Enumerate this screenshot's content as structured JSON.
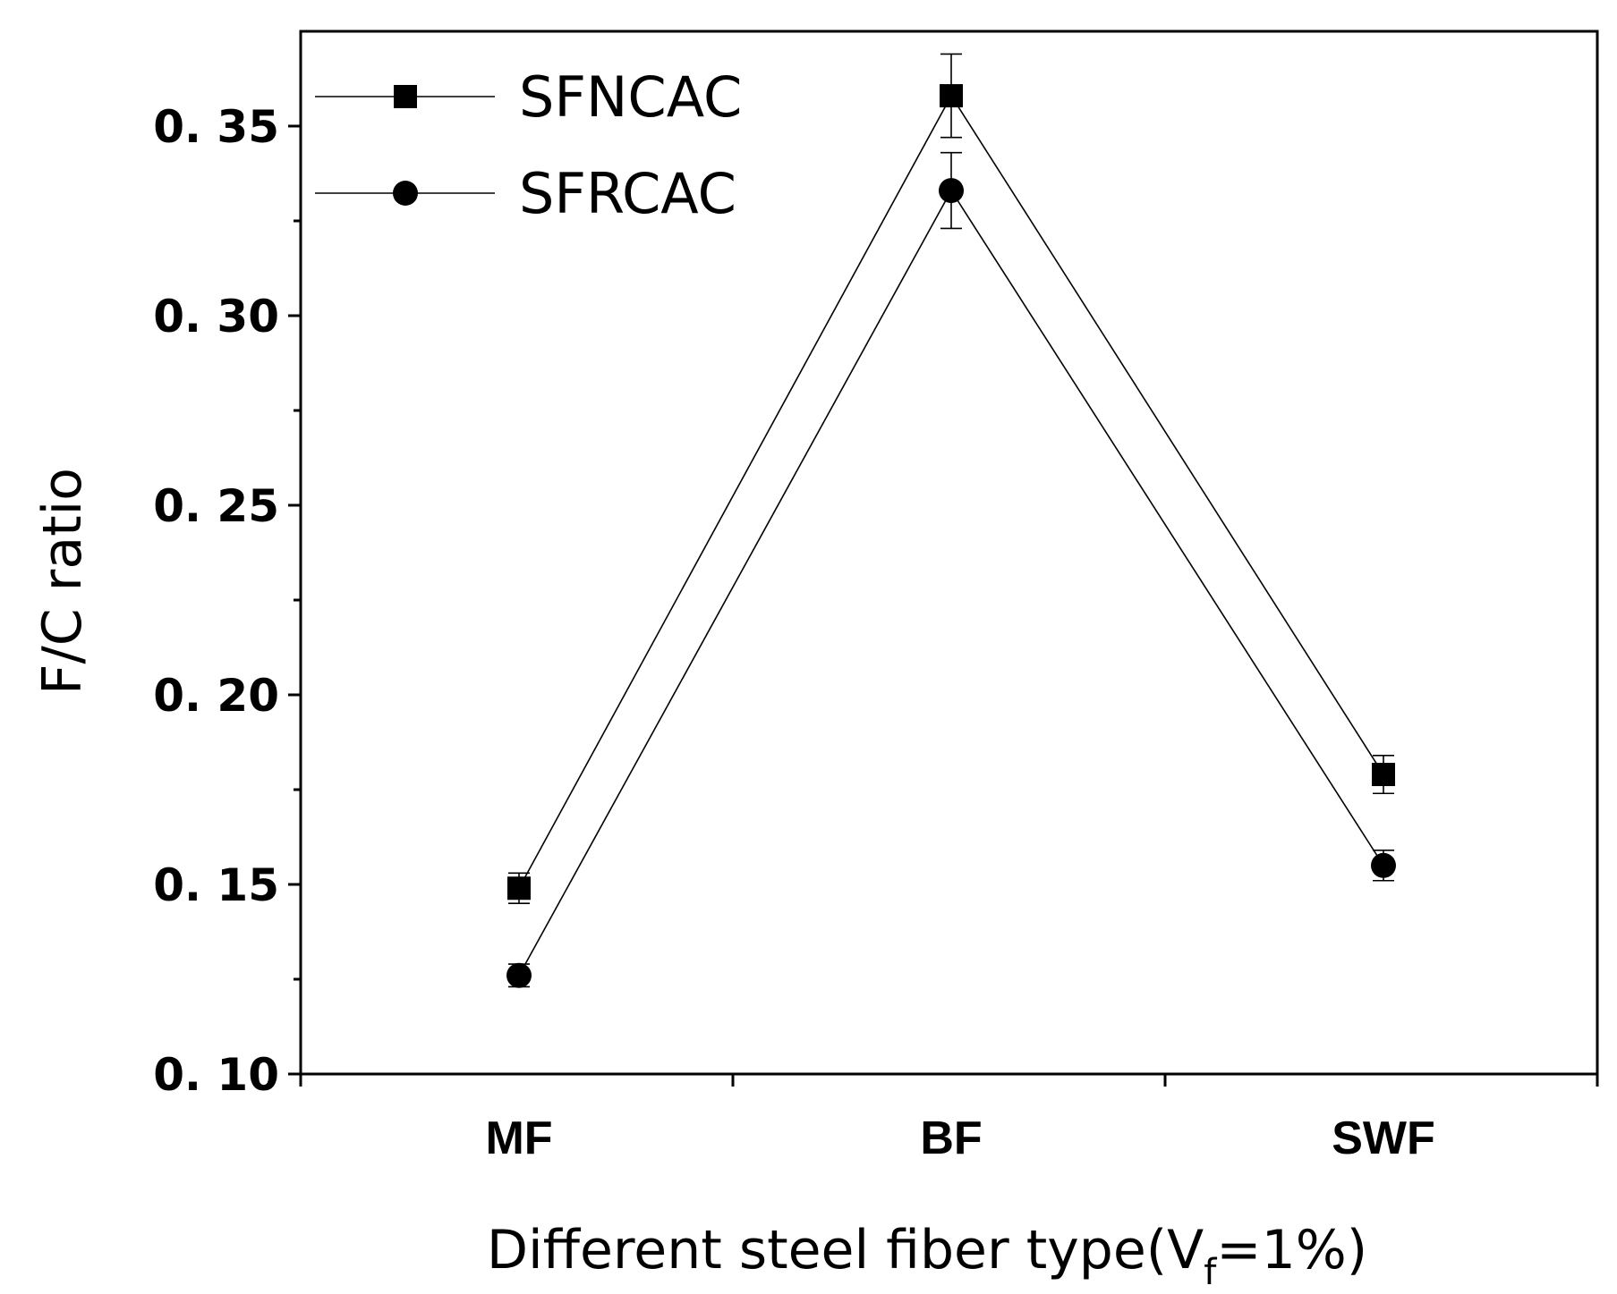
{
  "chart_data": {
    "type": "line",
    "title": "",
    "categories": [
      "MF",
      "BF",
      "SWF"
    ],
    "ylim": [
      0.1,
      0.375
    ],
    "yticks": [
      "0. 10",
      "0. 15",
      "0. 20",
      "0. 25",
      "0. 30",
      "0. 35"
    ],
    "ytick_values": [
      0.1,
      0.15,
      0.2,
      0.25,
      0.3,
      0.35
    ],
    "ylabel": "F/C ratio",
    "xlabel_main": "Different steel fiber type(V",
    "xlabel_sub": "f",
    "xlabel_tail": "=1%)",
    "legend_position": "top-left",
    "series": [
      {
        "name": "SFNCAC",
        "marker": "square",
        "values": [
          0.149,
          0.358,
          0.179
        ],
        "errors": [
          0.004,
          0.011,
          0.005
        ]
      },
      {
        "name": "SFRCAC",
        "marker": "circle",
        "values": [
          0.126,
          0.333,
          0.155
        ],
        "errors": [
          0.003,
          0.01,
          0.004
        ]
      }
    ],
    "colors": {
      "line": "#000000",
      "background": "#ffffff"
    }
  }
}
